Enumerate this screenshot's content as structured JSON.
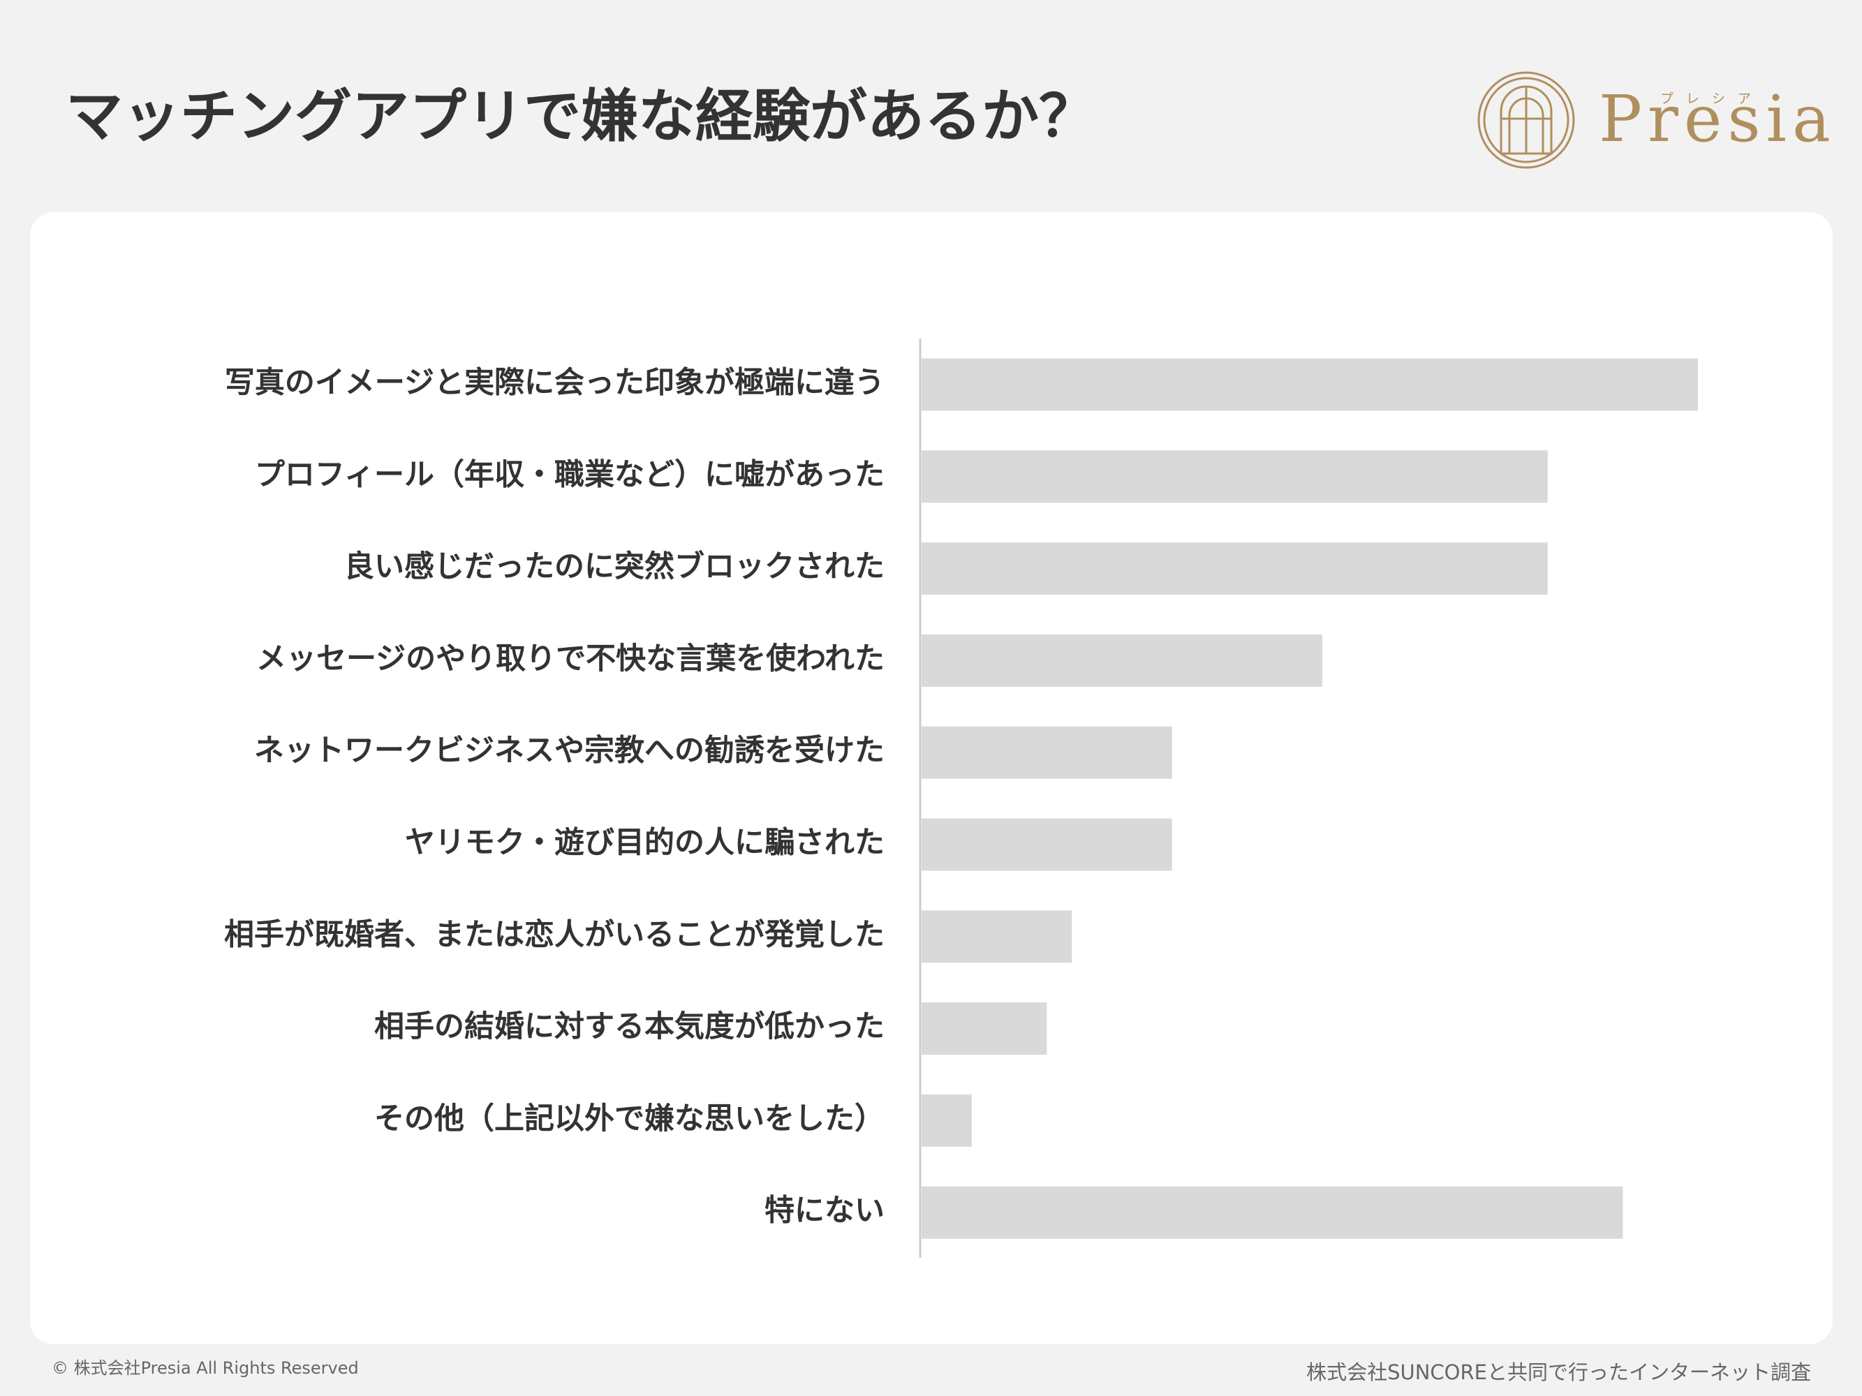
{
  "chart_data": {
    "type": "bar",
    "title": "マッチングアプリで嫌な経験があるか？",
    "categories": [
      "写真のイメージと実際に会った印象が極端に違う",
      "プロフィール（年収・職業など）に嘘があった",
      "良い感じだったのに突然ブロックされた",
      "メッセージのやり取りで不快な言葉を使われた",
      "ネットワークビジネスや宗教への勧誘を受けた",
      "ヤリモク・遊び目的の人に騙された",
      "相手が既婚者、または恋人がいることが発覚した",
      "相手の結婚に対する本気度が低かった",
      "その他（上記以外で嫌な思いをした）",
      "特にない"
    ],
    "values": [
      31,
      25,
      25,
      16,
      10,
      10,
      6,
      5,
      2,
      28
    ],
    "color": "#d9d9d9"
  },
  "logo": {
    "name": "Presia",
    "reading": "プレシア"
  },
  "footer": {
    "copyright": "© 株式会社Presia All Rights Reserved",
    "source": "株式会社SUNCOREと共同で行ったインターネット調査"
  }
}
